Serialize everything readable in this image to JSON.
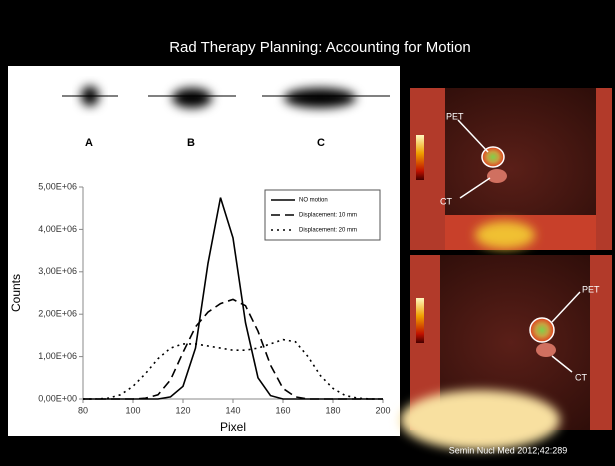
{
  "slide_title": "Rad Therapy Planning: Accounting for Motion",
  "blob_labels": [
    "A",
    "B",
    "C"
  ],
  "image_labels": {
    "top": [
      "PET",
      "CT"
    ],
    "bottom": [
      "PET",
      "CT"
    ]
  },
  "citation": "Semin Nucl Med 2012;42:289",
  "chart_data": {
    "type": "line",
    "xlabel": "Pixel",
    "ylabel": "Counts",
    "x": [
      80,
      85,
      90,
      95,
      100,
      105,
      110,
      115,
      120,
      125,
      130,
      135,
      140,
      145,
      150,
      155,
      160,
      165,
      170,
      175,
      180,
      185,
      190,
      195,
      200
    ],
    "series": [
      {
        "name": "NO motion",
        "color": "#000000",
        "dash": "none",
        "values": [
          0,
          0,
          0,
          0,
          0,
          0,
          0,
          50000,
          300000,
          1200000,
          3200000,
          4750000,
          3800000,
          1800000,
          500000,
          80000,
          0,
          0,
          0,
          0,
          0,
          0,
          0,
          0,
          0
        ]
      },
      {
        "name": "Displacement: 10 mm",
        "color": "#000000",
        "dash": "9,5",
        "values": [
          0,
          0,
          0,
          0,
          0,
          20000,
          100000,
          450000,
          1100000,
          1700000,
          2050000,
          2250000,
          2350000,
          2200000,
          1600000,
          800000,
          250000,
          50000,
          0,
          0,
          0,
          0,
          0,
          0,
          0
        ]
      },
      {
        "name": "Displacement: 20 mm",
        "color": "#000000",
        "dash": "2,4",
        "values": [
          0,
          0,
          20000,
          100000,
          300000,
          600000,
          950000,
          1200000,
          1300000,
          1300000,
          1250000,
          1200000,
          1150000,
          1150000,
          1200000,
          1300000,
          1400000,
          1350000,
          1000000,
          550000,
          250000,
          80000,
          20000,
          0,
          0
        ]
      }
    ],
    "xlim": [
      80,
      200
    ],
    "xticks": [
      80,
      100,
      120,
      140,
      160,
      180,
      200
    ],
    "ylim": [
      0,
      5000000
    ],
    "yticks": [
      {
        "value": 0,
        "label": "0,00E+00"
      },
      {
        "value": 1000000,
        "label": "1,00E+06"
      },
      {
        "value": 2000000,
        "label": "2,00E+06"
      },
      {
        "value": 3000000,
        "label": "3,00E+06"
      },
      {
        "value": 4000000,
        "label": "4,00E+06"
      },
      {
        "value": 5000000,
        "label": "5,00E+06"
      }
    ],
    "grid": false,
    "legend": "upper right"
  }
}
